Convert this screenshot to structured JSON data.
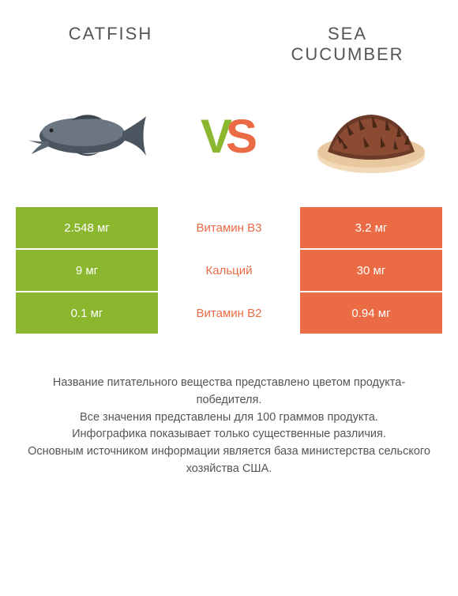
{
  "header": {
    "left_title": "CATFISH",
    "right_title": "SEA CUCUMBER"
  },
  "vs": {
    "v_letter": "V",
    "s_letter": "S",
    "left_color": "#8bb72e",
    "right_color": "#ea6b44"
  },
  "colors": {
    "left_bg": "#8bb72e",
    "right_bg": "#ea6b44",
    "mid_text_winner_left": "#8bb72e",
    "mid_text_winner_right": "#ea6b44",
    "text_default": "#555555"
  },
  "rows": [
    {
      "left": "2.548 мг",
      "mid": "Витамин B3",
      "right": "3.2 мг",
      "winner": "right"
    },
    {
      "left": "9 мг",
      "mid": "Кальций",
      "right": "30 мг",
      "winner": "right"
    },
    {
      "left": "0.1 мг",
      "mid": "Витамин B2",
      "right": "0.94 мг",
      "winner": "right"
    }
  ],
  "footer": {
    "line1": "Название питательного вещества представлено цветом продукта-победителя.",
    "line2": "Все значения представлены для 100 граммов продукта.",
    "line3": "Инфографика показывает только существенные различия.",
    "line4": "Основным источником информации является база министерства сельского хозяйства США."
  },
  "images": {
    "left_alt": "catfish",
    "right_alt": "sea-cucumber"
  }
}
